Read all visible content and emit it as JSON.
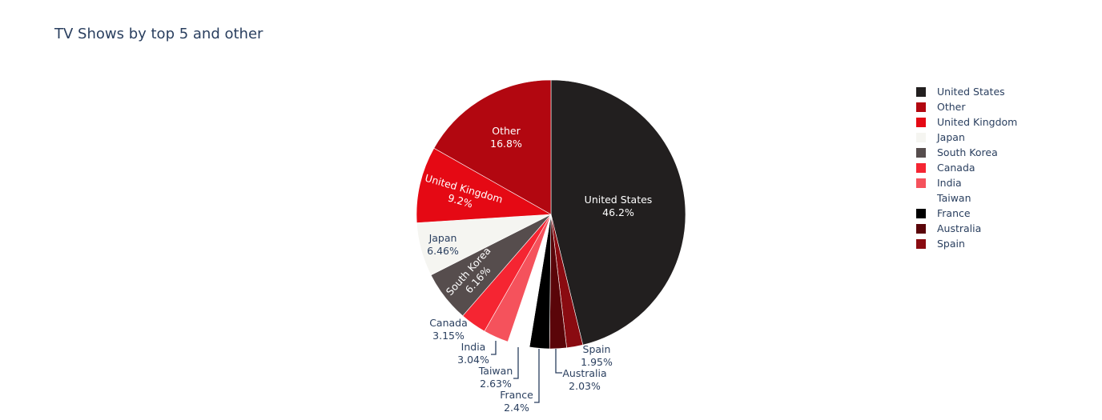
{
  "chart_data": {
    "type": "pie",
    "title": "TV Shows by top 5 and other",
    "legend_position": "right",
    "slices": [
      {
        "label": "United States",
        "percent": 46.2,
        "percent_text": "46.2%",
        "color": "#221f1f"
      },
      {
        "label": "Spain",
        "percent": 1.95,
        "percent_text": "1.95%",
        "color": "#8a0b11"
      },
      {
        "label": "Australia",
        "percent": 2.03,
        "percent_text": "2.03%",
        "color": "#5a0509"
      },
      {
        "label": "France",
        "percent": 2.4,
        "percent_text": "2.4%",
        "color": "#000000"
      },
      {
        "label": "Taiwan",
        "percent": 2.63,
        "percent_text": "2.63%",
        "color": "#ffffff"
      },
      {
        "label": "India",
        "percent": 3.04,
        "percent_text": "3.04%",
        "color": "#f5525c"
      },
      {
        "label": "Canada",
        "percent": 3.15,
        "percent_text": "3.15%",
        "color": "#f52532"
      },
      {
        "label": "South Korea",
        "percent": 6.16,
        "percent_text": "6.16%",
        "color": "#564d4d"
      },
      {
        "label": "Japan",
        "percent": 6.46,
        "percent_text": "6.46%",
        "color": "#f5f5f1"
      },
      {
        "label": "United Kingdom",
        "percent": 9.2,
        "percent_text": "9.2%",
        "color": "#e50914"
      },
      {
        "label": "Other",
        "percent": 16.8,
        "percent_text": "16.8%",
        "color": "#b20710"
      }
    ],
    "legend_order": [
      "United States",
      "Other",
      "United Kingdom",
      "Japan",
      "South Korea",
      "Canada",
      "India",
      "Taiwan",
      "France",
      "Australia",
      "Spain"
    ]
  }
}
